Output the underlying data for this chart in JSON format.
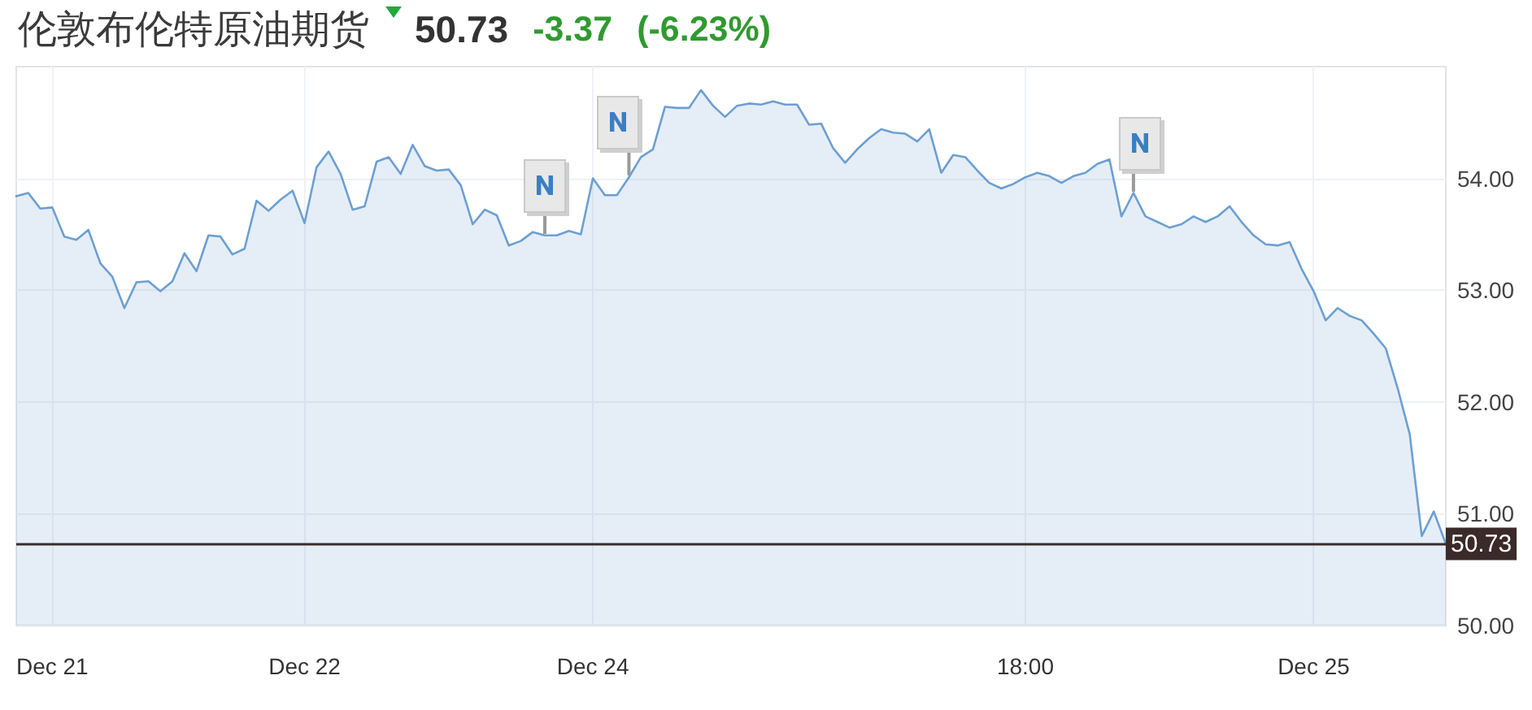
{
  "chart_data": {
    "type": "area",
    "title": "伦敦布伦特原油期货",
    "annotations": [
      "50.73",
      "-3.37",
      "(-6.23%)"
    ],
    "categories": [
      null,
      null,
      null,
      "Dec 21",
      null,
      null,
      null,
      null,
      null,
      null,
      null,
      null,
      null,
      null,
      null,
      null,
      null,
      null,
      null,
      null,
      null,
      null,
      null,
      null,
      "Dec 22",
      null,
      null,
      null,
      null,
      null,
      null,
      null,
      null,
      null,
      null,
      null,
      null,
      null,
      null,
      null,
      null,
      null,
      null,
      null,
      null,
      null,
      null,
      null,
      "Dec 24",
      null,
      null,
      null,
      null,
      null,
      null,
      null,
      null,
      null,
      null,
      null,
      null,
      null,
      null,
      null,
      null,
      null,
      null,
      null,
      null,
      null,
      null,
      null,
      null,
      null,
      null,
      null,
      null,
      null,
      null,
      null,
      null,
      null,
      null,
      null,
      "18:00",
      null,
      null,
      null,
      null,
      null,
      null,
      null,
      null,
      null,
      null,
      null,
      null,
      null,
      null,
      null,
      null,
      null,
      null,
      null,
      null,
      null,
      null,
      null,
      "Dec 25",
      null,
      null,
      null,
      null,
      null,
      null,
      null,
      null,
      null,
      null,
      null
    ],
    "series": [
      {
        "color": "#6d9fd2",
        "values": [
          53.84,
          53.87,
          53.73,
          53.74,
          53.48,
          53.45,
          53.54,
          53.24,
          53.12,
          52.84,
          53.07,
          53.08,
          52.99,
          53.08,
          53.33,
          53.17,
          53.49,
          53.48,
          53.32,
          53.37,
          53.8,
          53.71,
          53.81,
          53.89,
          53.6,
          54.1,
          54.24,
          54.04,
          53.72,
          53.75,
          54.15,
          54.19,
          54.04,
          54.3,
          54.11,
          54.07,
          54.08,
          53.94,
          53.59,
          53.72,
          53.67,
          53.4,
          53.44,
          53.52,
          53.49,
          53.49,
          53.53,
          53.5,
          54.0,
          53.85,
          53.85,
          54.01,
          54.19,
          54.26,
          54.64,
          54.63,
          54.63,
          54.79,
          54.65,
          54.55,
          54.65,
          54.67,
          54.66,
          54.69,
          54.66,
          54.66,
          54.48,
          54.49,
          54.27,
          54.14,
          54.26,
          54.36,
          54.44,
          54.41,
          54.4,
          54.33,
          54.44,
          54.05,
          54.21,
          54.19,
          54.07,
          53.96,
          53.91,
          53.95,
          54.01,
          54.05,
          54.02,
          53.96,
          54.02,
          54.05,
          54.13,
          54.17,
          53.66,
          53.87,
          53.66,
          53.61,
          53.56,
          53.59,
          53.66,
          53.61,
          53.66,
          53.75,
          53.61,
          53.49,
          53.41,
          53.4,
          53.43,
          53.19,
          52.99,
          52.73,
          52.84,
          52.77,
          52.73,
          52.61,
          52.48,
          52.12,
          51.71,
          50.8,
          51.02,
          50.73
        ]
      }
    ],
    "ylim": [
      50,
      55
    ],
    "yticks": [
      {
        "value": 50,
        "label": "50.00"
      },
      {
        "value": 51,
        "label": "51.00"
      },
      {
        "value": 52,
        "label": "52.00"
      },
      {
        "value": 53,
        "label": "53.00"
      },
      {
        "value": 54,
        "label": "54.00"
      }
    ],
    "grid": true,
    "marker": "none",
    "ref_lines": [
      {
        "axis": "y",
        "value": 50.73,
        "label": "50.73",
        "color": "#3b2a2a"
      }
    ]
  }
}
